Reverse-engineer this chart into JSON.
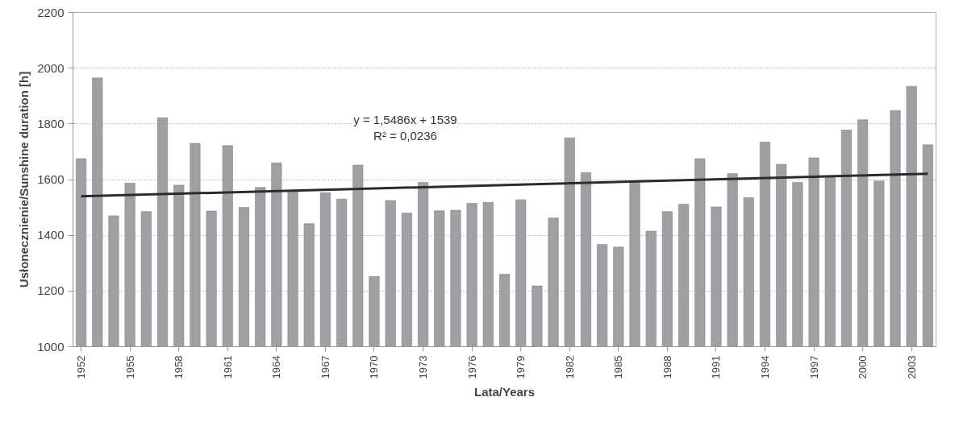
{
  "chart_data": {
    "type": "bar",
    "xlabel": "Lata/Years",
    "ylabel": "Usłonecznienie/Sunshine duration [h]",
    "x": [
      1952,
      1953,
      1954,
      1955,
      1956,
      1957,
      1958,
      1959,
      1960,
      1961,
      1962,
      1963,
      1964,
      1965,
      1966,
      1967,
      1968,
      1969,
      1970,
      1971,
      1972,
      1973,
      1974,
      1975,
      1976,
      1977,
      1978,
      1979,
      1980,
      1981,
      1982,
      1983,
      1984,
      1985,
      1986,
      1987,
      1988,
      1989,
      1990,
      1991,
      1992,
      1993,
      1994,
      1995,
      1996,
      1997,
      1998,
      1999,
      2000,
      2001,
      2002,
      2003,
      2004
    ],
    "series": [
      {
        "color": "#a0a0a4",
        "values": [
          1675,
          1965,
          1470,
          1587,
          1485,
          1822,
          1580,
          1730,
          1487,
          1722,
          1500,
          1572,
          1660,
          1555,
          1442,
          1553,
          1530,
          1652,
          1252,
          1525,
          1480,
          1590,
          1488,
          1490,
          1515,
          1518,
          1260,
          1528,
          1218,
          1462,
          1750,
          1625,
          1367,
          1358,
          1595,
          1415,
          1485,
          1512,
          1675,
          1502,
          1622,
          1535,
          1735,
          1655,
          1590,
          1678,
          1607,
          1778,
          1815,
          1595,
          1848,
          1935,
          1725
        ]
      },
      {
        "type": "line",
        "color": "#2b2b2b",
        "x": [
          1952,
          2004
        ],
        "values": [
          1540,
          1621
        ]
      }
    ],
    "xlim": [
      1951.5,
      2004.5
    ],
    "ylim": [
      1000,
      2200
    ],
    "xticks": [
      1952,
      1955,
      1958,
      1961,
      1964,
      1967,
      1970,
      1973,
      1976,
      1979,
      1982,
      1985,
      1988,
      1991,
      1994,
      1997,
      2000,
      2003
    ],
    "yticks": [
      1000,
      1200,
      1400,
      1600,
      1800,
      2000,
      2200
    ],
    "grid": "y",
    "annotations": [
      "y = 1,5486x + 1539",
      "R² = 0,0236"
    ]
  }
}
